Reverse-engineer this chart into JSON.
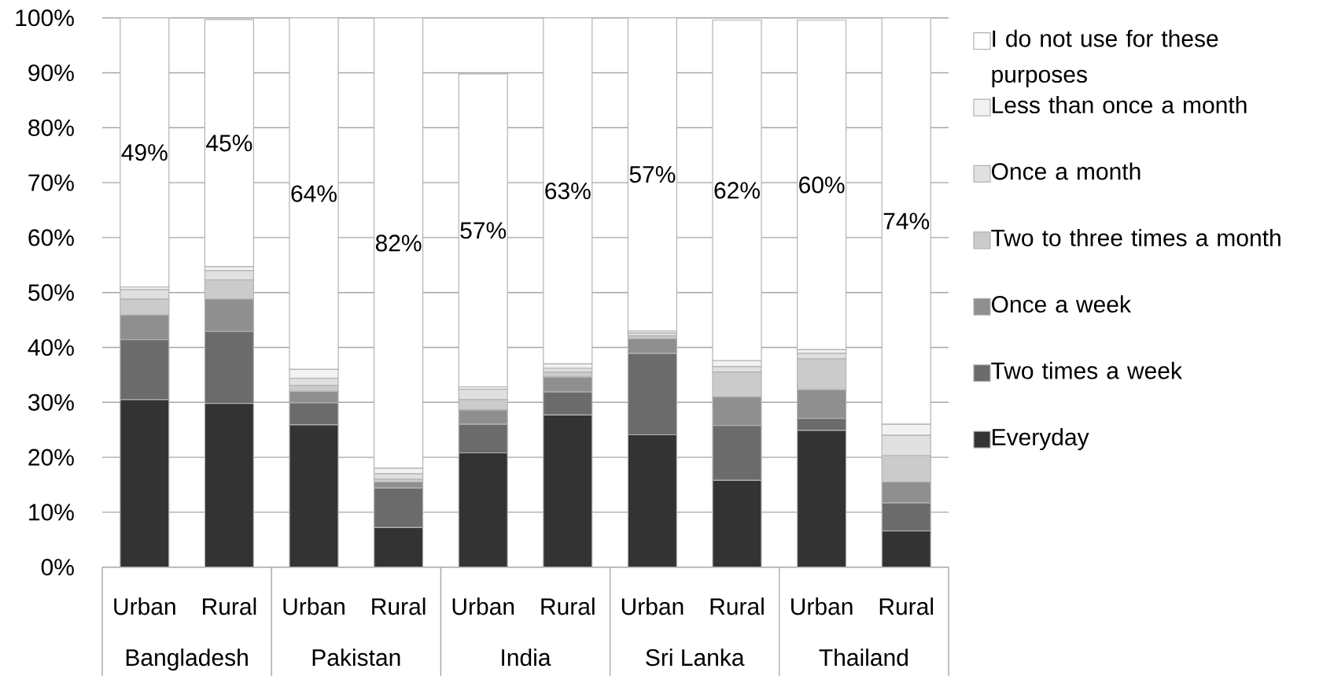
{
  "chart_data": {
    "type": "bar",
    "stacked": true,
    "categories": [
      "Urban",
      "Rural",
      "Urban",
      "Rural",
      "Urban",
      "Rural",
      "Urban",
      "Rural",
      "Urban",
      "Rural"
    ],
    "series": [
      {
        "name": "Everyday",
        "color": "#333333",
        "values": [
          30.5,
          29.8,
          25.9,
          7.2,
          20.8,
          27.7,
          24.1,
          15.8,
          24.9,
          6.6
        ]
      },
      {
        "name": "Two times a week",
        "color": "#6b6b6b",
        "values": [
          10.9,
          13.1,
          4.0,
          7.2,
          5.2,
          4.2,
          14.8,
          10.0,
          2.2,
          5.1
        ]
      },
      {
        "name": "Once a week",
        "color": "#8f8f8f",
        "values": [
          4.5,
          5.9,
          2.1,
          1.1,
          2.6,
          2.7,
          2.7,
          5.2,
          5.2,
          3.8
        ]
      },
      {
        "name": "Two to three times a month",
        "color": "#cbcbcb",
        "values": [
          2.9,
          3.5,
          1.1,
          0.5,
          1.9,
          0.9,
          0.5,
          4.5,
          5.6,
          4.8
        ]
      },
      {
        "name": "Once a month",
        "color": "#e0e0e0",
        "values": [
          1.7,
          1.7,
          1.3,
          1.0,
          1.9,
          0.7,
          0.5,
          1.0,
          1.0,
          3.7
        ]
      },
      {
        "name": "Less than once a month",
        "color": "#f2f2f2",
        "values": [
          0.5,
          0.7,
          1.6,
          1.0,
          0.4,
          0.8,
          0.4,
          1.1,
          0.7,
          2.0
        ]
      },
      {
        "name": "I do not use for these purposes",
        "color": "#ffffff",
        "values": [
          49,
          45,
          64,
          82,
          57,
          63,
          57,
          62,
          60,
          74
        ],
        "value_labels": [
          "49%",
          "45%",
          "64%",
          "82%",
          "57%",
          "63%",
          "57%",
          "62%",
          "60%",
          "74%"
        ]
      }
    ],
    "ylim": [
      0,
      100
    ],
    "yticks": [
      {
        "value": 0,
        "label": "0%"
      },
      {
        "value": 10,
        "label": "10%"
      },
      {
        "value": 20,
        "label": "20%"
      },
      {
        "value": 30,
        "label": "30%"
      },
      {
        "value": 40,
        "label": "40%"
      },
      {
        "value": 50,
        "label": "50%"
      },
      {
        "value": 60,
        "label": "60%"
      },
      {
        "value": 70,
        "label": "70%"
      },
      {
        "value": 80,
        "label": "80%"
      },
      {
        "value": 90,
        "label": "90%"
      },
      {
        "value": 100,
        "label": "100%"
      }
    ],
    "grid": "y",
    "legend": "right",
    "annotations": [
      "Bangladesh",
      "Pakistan",
      "India",
      "Sri Lanka",
      "Thailand"
    ]
  }
}
